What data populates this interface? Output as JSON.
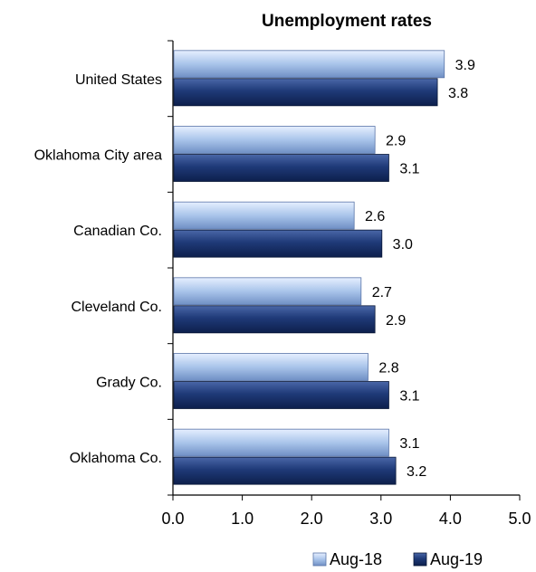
{
  "chart_data": {
    "type": "bar",
    "orientation": "horizontal",
    "title": "Unemployment rates",
    "categories": [
      "United States",
      "Oklahoma City area",
      "Canadian Co.",
      "Cleveland Co.",
      "Grady Co.",
      "Oklahoma Co."
    ],
    "series": [
      {
        "name": "Aug-18",
        "values": [
          3.9,
          2.9,
          2.6,
          2.7,
          2.8,
          3.1
        ],
        "color": "#a9c4ea"
      },
      {
        "name": "Aug-19",
        "values": [
          3.8,
          3.1,
          3.0,
          2.9,
          3.1,
          3.2
        ],
        "color": "#1f3a78"
      }
    ],
    "value_labels": [
      [
        "3.9",
        "2.9",
        "2.6",
        "2.7",
        "2.8",
        "3.1"
      ],
      [
        "3.8",
        "3.1",
        "3.0",
        "2.9",
        "3.1",
        "3.2"
      ]
    ],
    "xlim": [
      0,
      5
    ],
    "xticks": [
      "0.0",
      "1.0",
      "2.0",
      "3.0",
      "4.0",
      "5.0"
    ],
    "grid": false,
    "legend_position": "bottom-right"
  }
}
